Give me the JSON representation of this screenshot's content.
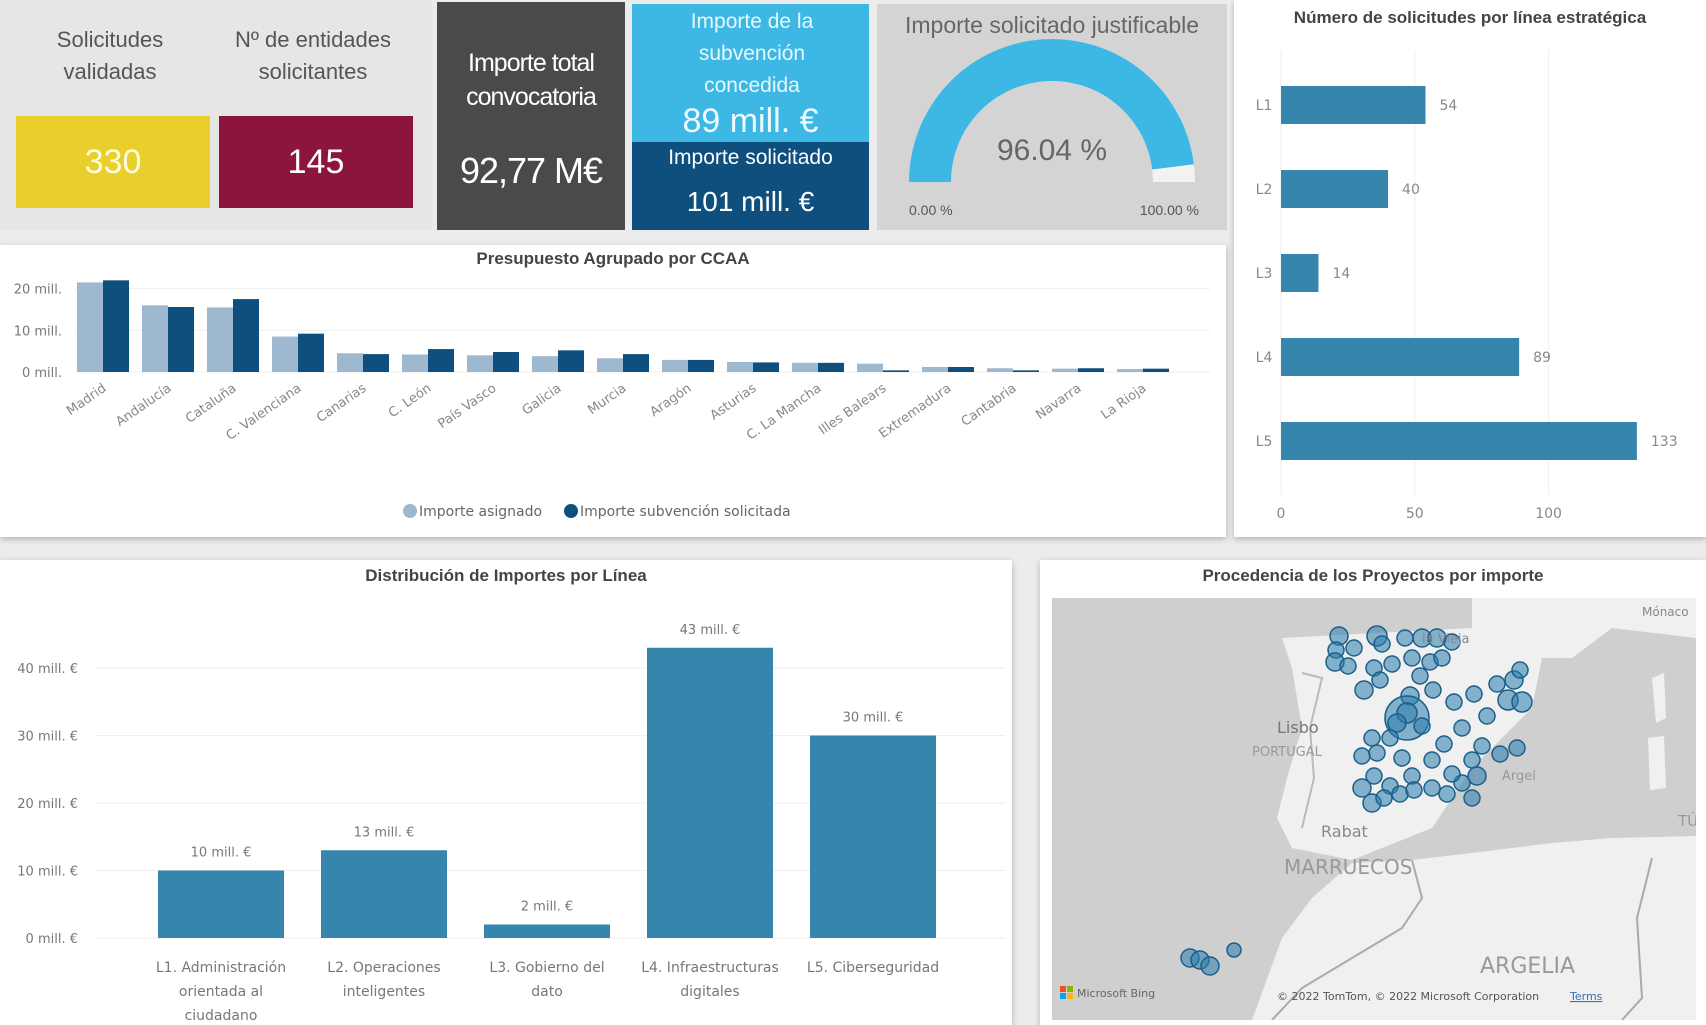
{
  "kpis": {
    "solicitudes": {
      "label": "Solicitudes validadas",
      "value": "330",
      "color": "#e8cf2c"
    },
    "entidades": {
      "label": "Nº de entidades solicitantes",
      "value": "145",
      "color": "#8c1540"
    },
    "importe_total": {
      "label": "Importe total convocatoria",
      "value": "92,77 M€",
      "color": "#4a4a4a"
    },
    "concedida": {
      "label": "Importe de la subvención concedida",
      "value": "89 mill. €",
      "color": "#3db8e4"
    },
    "solicitado": {
      "label": "Importe solicitado",
      "value": "101 mill. €",
      "color": "#0f4f7d"
    }
  },
  "gauge": {
    "title": "Importe solicitado justificable",
    "value_label": "96.04 %",
    "value_pct": 96.04,
    "min_label": "0.00 %",
    "max_label": "100.00 %",
    "fill_color": "#3db8e4",
    "track_color": "#f2f2f2"
  },
  "chart_data": [
    {
      "id": "ccaa",
      "type": "bar",
      "title": "Presupuesto Agrupado por CCAA",
      "categories": [
        "Madrid",
        "Andalucía",
        "Cataluña",
        "C. Valenciana",
        "Canarias",
        "C. León",
        "País Vasco",
        "Galicia",
        "Murcia",
        "Aragón",
        "Asturias",
        "C. La Mancha",
        "Illes Balears",
        "Extremadura",
        "Cantabria",
        "Navarra",
        "La Rioja"
      ],
      "series": [
        {
          "name": "Importe asignado",
          "color": "#9db8cf",
          "values": [
            21.5,
            16,
            15.5,
            8.5,
            4.5,
            4.2,
            4,
            3.8,
            3.3,
            2.9,
            2.4,
            2.2,
            2.0,
            1.2,
            0.9,
            0.8,
            0.7
          ]
        },
        {
          "name": "Importe subvención solicitada",
          "color": "#0f4f7d",
          "values": [
            22,
            15.6,
            17.5,
            9.2,
            4.3,
            5.5,
            4.8,
            5.2,
            4.3,
            2.9,
            2.3,
            2.2,
            0.4,
            1.2,
            0.4,
            0.9,
            0.8
          ]
        }
      ],
      "yticks": [
        "0 mill.",
        "10 mill.",
        "20 mill."
      ],
      "ytick_values": [
        0,
        10,
        20
      ],
      "ylim": [
        0,
        24
      ],
      "legend": "bottom-center",
      "grid": true
    },
    {
      "id": "lineas_count",
      "type": "bar",
      "orientation": "horizontal",
      "title": "Número de solicitudes por línea estratégica",
      "categories": [
        "L1",
        "L2",
        "L3",
        "L4",
        "L5"
      ],
      "values": [
        54,
        40,
        14,
        89,
        133
      ],
      "xticks": [
        "0",
        "50",
        "100"
      ],
      "xtick_values": [
        0,
        50,
        100
      ],
      "xlim": [
        0,
        145
      ],
      "color": "#3585ad",
      "grid": true
    },
    {
      "id": "lineas_importe",
      "type": "bar",
      "title": "Distribución de Importes por Línea",
      "categories": [
        "L1. Administración orientada al ciudadano",
        "L2. Operaciones inteligentes",
        "L3. Gobierno del dato",
        "L4. Infraestructuras digitales",
        "L5. Ciberseguridad"
      ],
      "category_lines": [
        [
          "L1. Administración",
          "orientada al",
          "ciudadano"
        ],
        [
          "L2. Operaciones",
          "inteligentes"
        ],
        [
          "L3. Gobierno del",
          "dato"
        ],
        [
          "L4. Infraestructuras",
          "digitales"
        ],
        [
          "L5. Ciberseguridad"
        ]
      ],
      "values": [
        10,
        13,
        2,
        43,
        30
      ],
      "data_labels": [
        "10 mill. €",
        "13 mill. €",
        "2 mill. €",
        "43 mill. €",
        "30 mill. €"
      ],
      "yticks": [
        "0 mill. €",
        "10 mill. €",
        "20 mill. €",
        "30 mill. €",
        "40 mill. €"
      ],
      "ytick_values": [
        0,
        10,
        20,
        30,
        40
      ],
      "ylim": [
        0,
        45
      ],
      "color": "#3585ad",
      "grid": true
    }
  ],
  "map": {
    "title": "Procedencia de los Proyectos por importe",
    "labels": {
      "lisboa": "Lisbo",
      "portugal": "PORTUGAL",
      "rabat": "Rabat",
      "marruecos": "MARRUECOS",
      "argelia": "ARGELIA",
      "argel": "Argel",
      "monaco": "Mónaco",
      "castilla": "la Vieja",
      "tunez": "TÚ"
    },
    "attribution": "© 2022 TomTom, © 2022 Microsoft Corporation",
    "terms": "Terms",
    "logo": "Microsoft Bing",
    "bubble_color": "#2a7bab"
  }
}
